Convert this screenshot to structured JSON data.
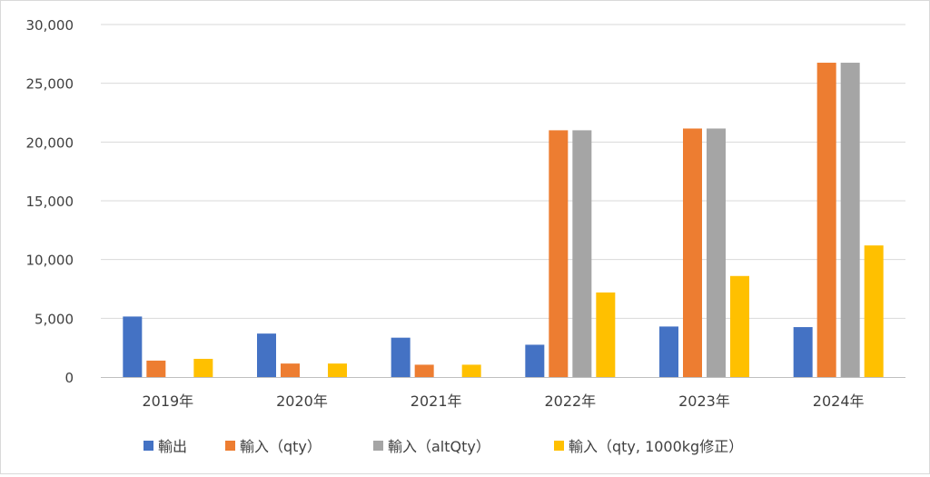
{
  "chart_data": {
    "type": "bar",
    "categories": [
      "2019年",
      "2020年",
      "2021年",
      "2022年",
      "2023年",
      "2024年"
    ],
    "series": [
      {
        "name": "輸出",
        "color": "#4472C4",
        "values": [
          5150,
          3700,
          3350,
          2750,
          4300,
          4250
        ]
      },
      {
        "name": "輸入（qty）",
        "color": "#ED7D31",
        "values": [
          1400,
          1150,
          1050,
          21000,
          21150,
          26750
        ]
      },
      {
        "name": "輸入（altQty）",
        "color": "#A5A5A5",
        "values": [
          0,
          0,
          0,
          21000,
          21150,
          26750
        ]
      },
      {
        "name": "輸入（qty, 1000kg修正）",
        "color": "#FFC000",
        "values": [
          1550,
          1150,
          1050,
          7200,
          8600,
          11200
        ]
      }
    ],
    "y_ticks": [
      "0",
      "5,000",
      "10,000",
      "15,000",
      "20,000",
      "25,000",
      "30,000"
    ],
    "ylim": [
      0,
      30000
    ],
    "grid": true,
    "legend_position": "bottom"
  }
}
